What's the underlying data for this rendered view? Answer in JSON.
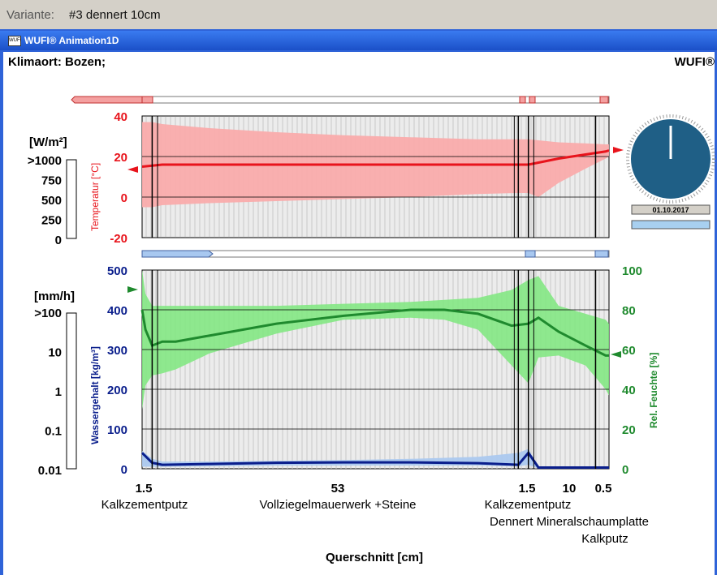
{
  "variant": {
    "label": "Variante:",
    "value": "#3 dennert 10cm"
  },
  "window": {
    "title": "WUFI® Animation1D",
    "icon_text": "WUFI"
  },
  "header": {
    "location": "Klimaort: Bozen;",
    "brand": "WUFI®"
  },
  "temp_panel": {
    "flux_unit": "[W/m²]",
    "flux_ticks": [
      ">1000",
      "750",
      "500",
      "250",
      "0"
    ],
    "axis_label": "Temperatur [°C]",
    "ticks": [
      "40",
      "20",
      "0",
      "-20"
    ]
  },
  "moisture_panel": {
    "rain_unit": "[mm/h]",
    "rain_ticks": [
      ">100",
      "10",
      "1",
      "0.1",
      "0.01"
    ],
    "left_label": "Wassergehalt [kg/m³]",
    "left_ticks": [
      "500",
      "400",
      "300",
      "200",
      "100",
      "0"
    ],
    "right_label": "Rel. Feuchte [%]",
    "right_ticks": [
      "100",
      "80",
      "60",
      "40",
      "20",
      "0"
    ]
  },
  "clock": {
    "date": "01.10.2017"
  },
  "xaxis": {
    "ticks": [
      "1.5",
      "53",
      "1.5",
      "10",
      "0.5"
    ],
    "layers": [
      "Kalkzementputz",
      "Vollziegelmauerwerk +Steine",
      "Kalkzementputz",
      "Dennert Mineralschaumplatte",
      "Kalkputz"
    ],
    "title": "Querschnitt [cm]"
  },
  "colors": {
    "temperature": "#e8141c",
    "temperature_band": "#fba8a8",
    "rh": "#1f8a2e",
    "rh_band": "#7ee87e",
    "water": "#0a1e8c",
    "water_band": "#a8c8f0",
    "clock": "#1f5f86"
  },
  "chart_data": [
    {
      "type": "area",
      "title": "",
      "ylabel": "Temperatur [°C]",
      "ylim": [
        -20,
        40
      ],
      "x": [
        0,
        1.5,
        3,
        10,
        20,
        30,
        40,
        50,
        56,
        57.5,
        59,
        62,
        66,
        69,
        69.5
      ],
      "series": [
        {
          "name": "Temperatur [°C]",
          "values": [
            15,
            15.5,
            16,
            16,
            16,
            16,
            16,
            16,
            16,
            16,
            17,
            19,
            21,
            22.5,
            23
          ]
        }
      ],
      "band_upper": [
        37,
        37,
        36,
        34,
        32,
        30.5,
        29.5,
        28.5,
        28.5,
        28.5,
        28,
        27,
        26.5,
        26,
        26
      ],
      "band_lower": [
        -5,
        -5,
        -4,
        -3,
        -2,
        -1,
        0,
        1.5,
        2,
        2,
        0,
        7,
        14,
        19,
        20
      ]
    },
    {
      "type": "area",
      "title": "",
      "ylabel": "Rel. Feuchte [%]",
      "ylim": [
        0,
        100
      ],
      "x": [
        0,
        0.5,
        1.5,
        3,
        5,
        10,
        20,
        30,
        40,
        45,
        50,
        55,
        57.5,
        59,
        62,
        66,
        69,
        69.5
      ],
      "series": [
        {
          "name": "Rel. Feuchte [%]",
          "values": [
            80,
            70,
            62,
            64,
            64,
            67,
            73,
            77,
            80,
            80,
            78,
            72,
            73,
            76,
            69,
            62,
            57,
            57
          ]
        }
      ],
      "band_upper": [
        100,
        88,
        82,
        82,
        82,
        82,
        82,
        83,
        84,
        85,
        86,
        90,
        95,
        97,
        82,
        78,
        75,
        73
      ],
      "band_lower": [
        30,
        42,
        47,
        48,
        50,
        58,
        68,
        75,
        76,
        75,
        70,
        52,
        43,
        56,
        57,
        52,
        40,
        37
      ]
    },
    {
      "type": "area",
      "title": "",
      "ylabel": "Wassergehalt [kg/m³]",
      "ylim": [
        0,
        500
      ],
      "x": [
        0,
        1.5,
        3,
        10,
        20,
        30,
        40,
        50,
        56,
        57.5,
        59,
        69.5
      ],
      "series": [
        {
          "name": "Wassergehalt [kg/m³]",
          "values": [
            40,
            15,
            10,
            12,
            15,
            16,
            16,
            14,
            10,
            40,
            3,
            3
          ]
        }
      ],
      "band_upper": [
        45,
        25,
        18,
        18,
        20,
        22,
        25,
        30,
        40,
        50,
        5,
        5
      ],
      "band_lower": [
        5,
        5,
        5,
        6,
        8,
        8,
        8,
        8,
        6,
        10,
        1,
        1
      ]
    }
  ]
}
